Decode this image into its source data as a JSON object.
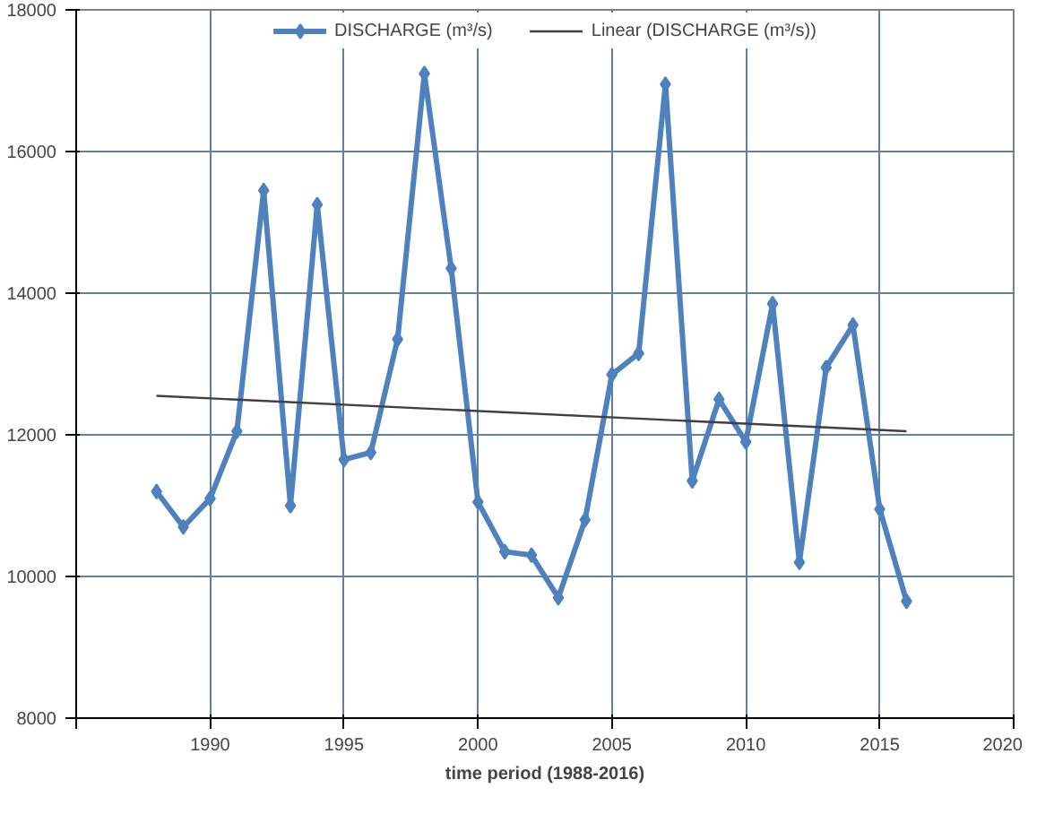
{
  "chart_data": {
    "type": "line",
    "xlabel": "time period (1988-2016)",
    "xlim": [
      1985,
      2020
    ],
    "xticks": [
      {
        "value": 1985,
        "label": null
      },
      1990,
      1995,
      2000,
      2005,
      2010,
      2015,
      2020
    ],
    "ylim": [
      8000,
      18000
    ],
    "yticks": [
      8000,
      10000,
      12000,
      14000,
      16000,
      18000
    ],
    "grid": true,
    "legend": "top",
    "x": [
      1988,
      1989,
      1990,
      1991,
      1992,
      1993,
      1994,
      1995,
      1996,
      1997,
      1998,
      1999,
      2000,
      2001,
      2002,
      2003,
      2004,
      2005,
      2006,
      2007,
      2008,
      2009,
      2010,
      2011,
      2012,
      2013,
      2014,
      2015,
      2016
    ],
    "series": [
      {
        "name": "DISCHARGE (m³/s)",
        "color": "#4f81bd",
        "marker": "diamond",
        "values": [
          11200,
          10700,
          11100,
          12050,
          15450,
          11000,
          15250,
          11650,
          11750,
          13350,
          17100,
          14350,
          11050,
          10350,
          10300,
          9700,
          10800,
          12850,
          13150,
          16950,
          11350,
          12500,
          11900,
          13850,
          10200,
          12950,
          13550,
          10950,
          9650
        ]
      },
      {
        "name": "Linear (DISCHARGE (m³/s))",
        "color": "#404040",
        "marker": "none",
        "x": [
          1988,
          2016
        ],
        "values": [
          12550,
          12050
        ]
      }
    ]
  }
}
